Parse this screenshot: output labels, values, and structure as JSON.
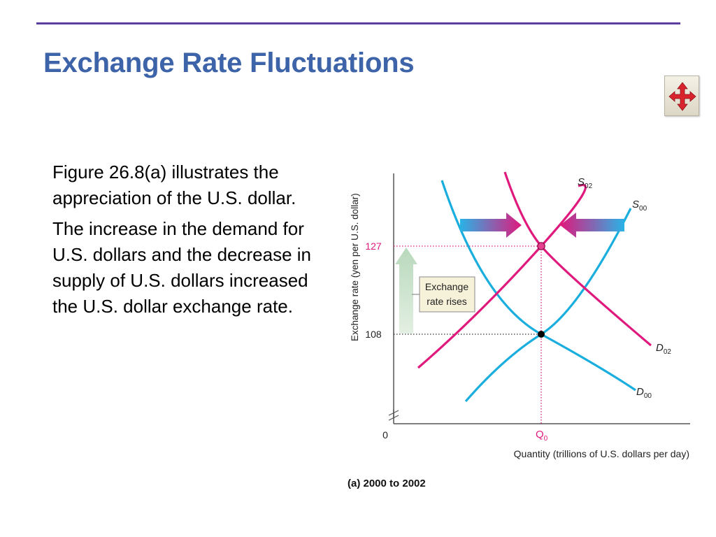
{
  "slide": {
    "title": "Exchange Rate Fluctuations",
    "paragraphs": [
      "Figure 26.8(a) illustrates the appreciation of the U.S. dollar.",
      "The increase in the demand for U.S. dollars and the decrease in supply of U.S. dollars increased the U.S. dollar exchange rate."
    ],
    "nav_icon": "four-way-arrow-icon"
  },
  "colors": {
    "title": "#3d63a8",
    "rule": "#5a3fa0",
    "curve_2000": "#1aaede",
    "curve_2002": "#e0197d",
    "arrow_fill": "#e0197d",
    "guide": "#e0197d"
  },
  "chart_data": {
    "type": "line",
    "title": "",
    "caption": "(a) 2000 to 2002",
    "xlabel": "Quantity (trillions of U.S. dollars per day)",
    "ylabel": "Exchange rate (yen per U.S. dollar)",
    "x_tick_label": "Q",
    "x_tick_sub": "0",
    "origin_label": "0",
    "y_ticks": [
      127,
      108
    ],
    "equilibria": [
      {
        "label": "2000",
        "rate": 108
      },
      {
        "label": "2002",
        "rate": 127
      }
    ],
    "series": [
      {
        "name": "S",
        "sub": "00",
        "kind": "supply",
        "year": "2000"
      },
      {
        "name": "S",
        "sub": "02",
        "kind": "supply",
        "year": "2002"
      },
      {
        "name": "D",
        "sub": "00",
        "kind": "demand",
        "year": "2000"
      },
      {
        "name": "D",
        "sub": "02",
        "kind": "demand",
        "year": "2002"
      }
    ],
    "annotation": [
      "Exchange",
      "rate rises"
    ],
    "grid": false,
    "legend": "none"
  }
}
